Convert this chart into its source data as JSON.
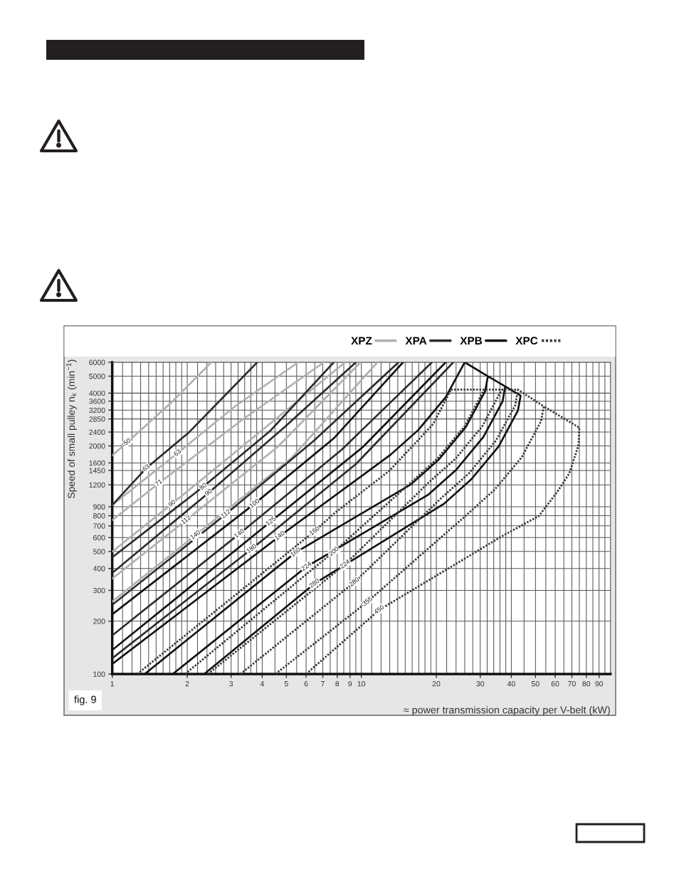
{
  "chart_data": {
    "type": "line",
    "xlabel": "≈ power transmission capacity per V-belt (kW)",
    "ylabel": "Speed of small pulley n$_{k}$ (min$^{−1}$)",
    "log": "xy",
    "xlim": [
      1,
      100
    ],
    "ylim": [
      100,
      6000
    ],
    "xticks": [
      1,
      {
        "value": 1.1,
        "label": null
      },
      {
        "value": 1.2,
        "label": null
      },
      {
        "value": 1.3,
        "label": null
      },
      {
        "value": 1.4,
        "label": null
      },
      {
        "value": 1.5,
        "label": null
      },
      {
        "value": 1.6,
        "label": null
      },
      {
        "value": 1.7,
        "label": null
      },
      {
        "value": 1.8,
        "label": null
      },
      {
        "value": 1.9,
        "label": null
      },
      2,
      {
        "value": 2.2,
        "label": null
      },
      {
        "value": 2.4,
        "label": null
      },
      {
        "value": 2.6,
        "label": null
      },
      {
        "value": 2.8,
        "label": null
      },
      3,
      {
        "value": 3.2,
        "label": null
      },
      {
        "value": 3.4,
        "label": null
      },
      {
        "value": 3.6,
        "label": null
      },
      {
        "value": 3.8,
        "label": null
      },
      4,
      {
        "value": 4.5,
        "label": null
      },
      5,
      {
        "value": 5.5,
        "label": null
      },
      6,
      {
        "value": 6.5,
        "label": null
      },
      7,
      {
        "value": 7.5,
        "label": null
      },
      8,
      {
        "value": 8.5,
        "label": null
      },
      9,
      {
        "value": 9.5,
        "label": null
      },
      10,
      {
        "value": 11,
        "label": null
      },
      {
        "value": 12,
        "label": null
      },
      {
        "value": 13,
        "label": null
      },
      {
        "value": 14,
        "label": null
      },
      {
        "value": 15,
        "label": null
      },
      {
        "value": 16,
        "label": null
      },
      {
        "value": 17,
        "label": null
      },
      {
        "value": 18,
        "label": null
      },
      {
        "value": 19,
        "label": null
      },
      20,
      {
        "value": 22,
        "label": null
      },
      {
        "value": 24,
        "label": null
      },
      {
        "value": 26,
        "label": null
      },
      {
        "value": 28,
        "label": null
      },
      30,
      {
        "value": 32,
        "label": null
      },
      {
        "value": 34,
        "label": null
      },
      {
        "value": 36,
        "label": null
      },
      {
        "value": 38,
        "label": null
      },
      40,
      {
        "value": 45,
        "label": null
      },
      50,
      {
        "value": 55,
        "label": null
      },
      60,
      {
        "value": 65,
        "label": null
      },
      70,
      {
        "value": 75,
        "label": null
      },
      80,
      {
        "value": 85,
        "label": null
      },
      90,
      {
        "value": 95,
        "label": null
      }
    ],
    "yticks": [
      100,
      200,
      300,
      400,
      500,
      600,
      700,
      800,
      900,
      1200,
      1450,
      1600,
      2000,
      2400,
      2850,
      3200,
      3600,
      4000,
      5000,
      6000
    ],
    "grid": true,
    "legend": "top right",
    "series": [
      {
        "name": "XPZ",
        "color": "#b0b0b0",
        "line_style": "solid",
        "x": [
          1,
          1.15,
          1.72,
          2.5,
          null,
          1,
          1.83,
          3.11,
          5.58,
          null,
          1,
          1.54,
          3.32,
          7.07,
          null,
          1,
          1.74,
          4.04,
          8.61,
          null,
          1,
          1.98,
          4.61,
          9.92,
          null,
          1,
          2.16,
          5.26,
          11.6
        ],
        "values": [
          1764,
          2103,
          3520,
          6000,
          null,
          919,
          1822,
          3362,
          6000,
          null,
          754,
          1227,
          2815,
          6000,
          null,
          499,
          937,
          2493,
          6000,
          null,
          350,
          755,
          1973,
          6000,
          null,
          259,
          620,
          1715,
          6000
        ]
      },
      {
        "name": "XPA",
        "color": "#2b2b2b",
        "line_style": "solid",
        "x": [
          1,
          1.37,
          2.03,
          3.82,
          null,
          1,
          2.32,
          4.32,
          7.75,
          null,
          1,
          2.44,
          4.92,
          9.51,
          null,
          1,
          2.86,
          6.41,
          14.1,
          null,
          1,
          3.24,
          8.33,
          19.2,
          null,
          1,
          3.63,
          9.51,
          23.4
        ],
        "values": [
          919,
          1495,
          2386,
          6000,
          null,
          463,
          1171,
          2447,
          6000,
          null,
          377,
          1082,
          2563,
          6000,
          null,
          248,
          817,
          2126,
          6000,
          null,
          166,
          631,
          1901,
          6000,
          null,
          123,
          517,
          1576,
          6000
        ]
      },
      {
        "name": "XPB",
        "color": "#111111",
        "line_style": "solid",
        "x": [
          1,
          3.73,
          7.8,
          14.7,
          null,
          1,
          4.34,
          10.15,
          21.8,
          null,
          1,
          4.71,
          13.1,
          16.9,
          21.8,
          26.0,
          null,
          1.35,
          5.45,
          15.8,
          20.4,
          26.3,
          31.4,
          32.2,
          26.0,
          null,
          1.75,
          6.03,
          18.6,
          24.0,
          30.9,
          36.9,
          37.8,
          32.2,
          null,
          2.34,
          6.49,
          21.5,
          27.7,
          35.6,
          42.5,
          43.6,
          37.8
        ],
        "values": [
          219,
          937,
          2228,
          6000,
          null,
          137,
          742,
          1973,
          6000,
          null,
          114,
          613,
          1782,
          2460,
          3790,
          6000,
          null,
          100,
          494,
          1206,
          1666,
          2570,
          4100,
          4990,
          6000,
          null,
          100,
          410,
          1056,
          1459,
          2250,
          3590,
          4370,
          4990,
          null,
          100,
          328,
          937,
          1295,
          1990,
          3182,
          3875,
          4370
        ]
      },
      {
        "name": "XPC",
        "color": "#3a3a3a",
        "line_style": "dotted",
        "x": [
          1.26,
          6.5,
          7.8,
          12.95,
          19.4,
          22.9,
          null,
          1.96,
          7.76,
          15.7,
          20.2,
          26.1,
          31.1,
          null,
          2.42,
          8.61,
          18.5,
          23.9,
          30.7,
          36.6,
          null,
          3.27,
          9.38,
          20.9,
          27.0,
          34.7,
          41.5,
          42.5,
          22.9,
          null,
          4.52,
          10.6,
          26.6,
          34.2,
          44.1,
          52.6,
          54.0,
          42.5,
          null,
          6.0,
          11.8,
          36.9,
          51.6,
          61.2,
          68.4,
          74.5,
          75.0,
          54.0
        ],
        "values": [
          100,
          654,
          827,
          1443,
          2662,
          4190,
          null,
          100,
          499,
          1226,
          1694,
          2610,
          4190,
          null,
          100,
          422,
          1226,
          1694,
          2610,
          4190,
          null,
          100,
          334,
          1007,
          1392,
          2145,
          3420,
          4190,
          4190,
          null,
          100,
          259,
          813,
          1123,
          1730,
          2760,
          3362,
          4190,
          null,
          100,
          232,
          614,
          797,
          1095,
          1396,
          2029,
          2540,
          3362
        ]
      }
    ],
    "annotations": [
      {
        "text": "50",
        "x": 1.15,
        "y": 2103
      },
      {
        "text": "63",
        "x": 1.37,
        "y": 1495
      },
      {
        "text": "63",
        "x": 1.83,
        "y": 1822
      },
      {
        "text": "71",
        "x": 1.54,
        "y": 1227
      },
      {
        "text": "90",
        "x": 1.74,
        "y": 937
      },
      {
        "text": "80",
        "x": 2.32,
        "y": 1171
      },
      {
        "text": "90",
        "x": 2.44,
        "y": 1082
      },
      {
        "text": "112",
        "x": 1.98,
        "y": 755
      },
      {
        "text": "140",
        "x": 2.16,
        "y": 620
      },
      {
        "text": "112",
        "x": 2.86,
        "y": 817
      },
      {
        "text": "100",
        "x": 3.73,
        "y": 937
      },
      {
        "text": "140",
        "x": 3.24,
        "y": 631
      },
      {
        "text": "125",
        "x": 4.34,
        "y": 742
      },
      {
        "text": "180",
        "x": 3.63,
        "y": 517
      },
      {
        "text": "140",
        "x": 4.71,
        "y": 613
      },
      {
        "text": "160",
        "x": 5.45,
        "y": 494
      },
      {
        "text": "224",
        "x": 6.03,
        "y": 410
      },
      {
        "text": "280",
        "x": 6.49,
        "y": 328
      },
      {
        "text": "160",
        "x": 6.5,
        "y": 654
      },
      {
        "text": "200",
        "x": 7.76,
        "y": 499
      },
      {
        "text": "224",
        "x": 8.61,
        "y": 422
      },
      {
        "text": "280",
        "x": 9.38,
        "y": 334
      },
      {
        "text": "355",
        "x": 10.6,
        "y": 259
      },
      {
        "text": "450",
        "x": 11.8,
        "y": 232
      },
      "fig. 9"
    ]
  }
}
